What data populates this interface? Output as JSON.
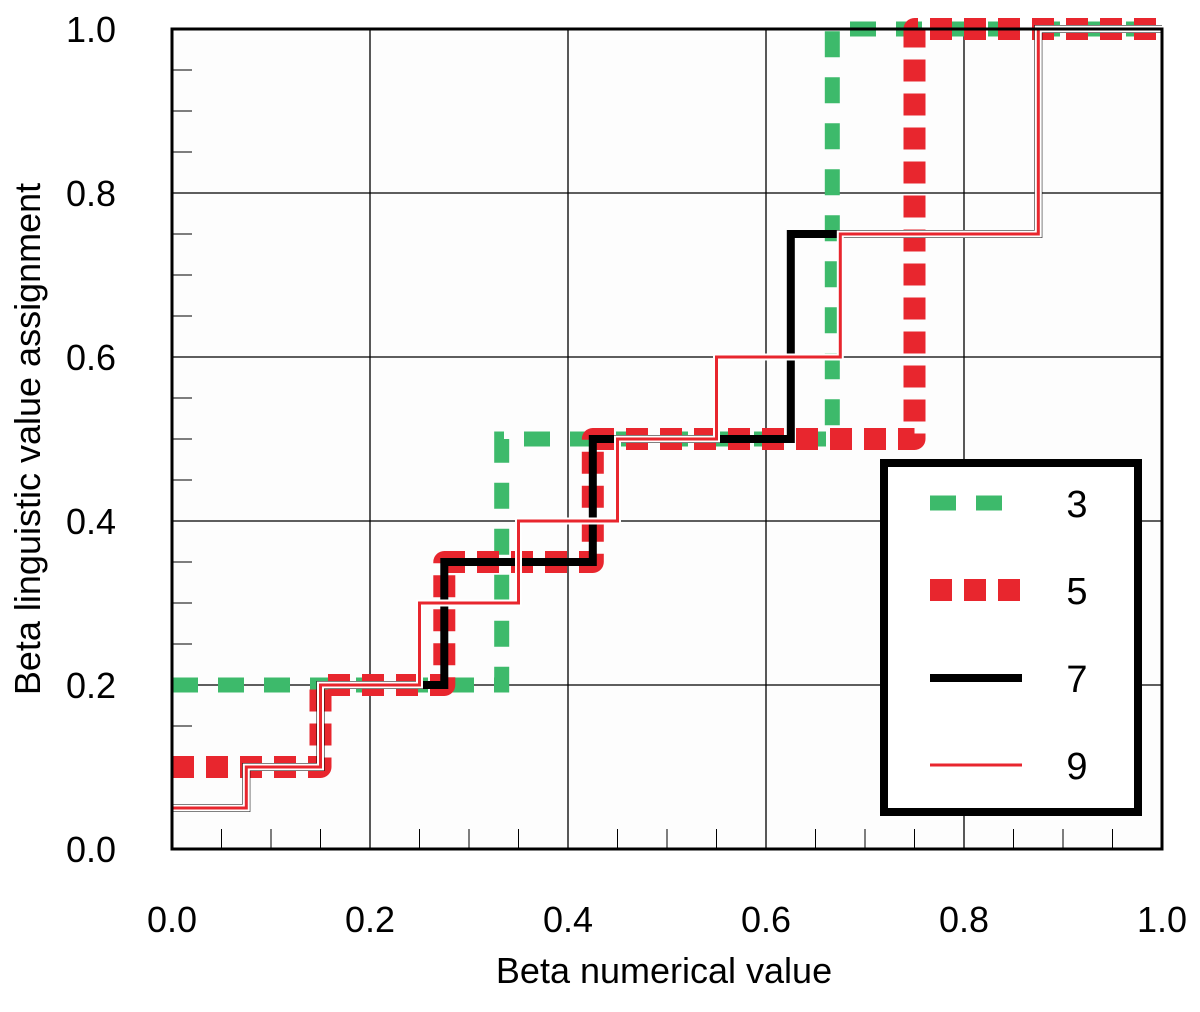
{
  "chart_data": {
    "type": "line",
    "step": true,
    "title": "",
    "xlabel": "Beta numerical value",
    "ylabel": "Beta linguistic value assignment",
    "xlim": [
      0,
      1
    ],
    "ylim": [
      0,
      1
    ],
    "xticks": [
      "0.0",
      "0.2",
      "0.4",
      "0.6",
      "0.8",
      "1.0"
    ],
    "yticks": [
      "0.0",
      "0.2",
      "0.4",
      "0.6",
      "0.8",
      "1.0"
    ],
    "grid": true,
    "legend_position": "bottom-right",
    "series": [
      {
        "name": "3",
        "color": "#3dba6b",
        "style": "dashed-thick",
        "x": [
          0.0,
          0.333,
          0.333,
          0.667,
          0.667,
          1.0
        ],
        "y": [
          0.2,
          0.2,
          0.5,
          0.5,
          1.0,
          1.0
        ]
      },
      {
        "name": "5",
        "color": "#e8262e",
        "style": "dotted-heavy",
        "x": [
          0.0,
          0.15,
          0.15,
          0.275,
          0.275,
          0.425,
          0.425,
          0.75,
          0.75,
          1.0
        ],
        "y": [
          0.1,
          0.1,
          0.2,
          0.2,
          0.35,
          0.35,
          0.5,
          0.5,
          1.0,
          1.0
        ]
      },
      {
        "name": "7",
        "color": "#000000",
        "style": "solid-thick",
        "x": [
          0.0,
          0.075,
          0.075,
          0.15,
          0.15,
          0.275,
          0.275,
          0.425,
          0.425,
          0.625,
          0.625,
          0.875,
          0.875,
          1.0
        ],
        "y": [
          0.05,
          0.05,
          0.1,
          0.1,
          0.2,
          0.2,
          0.35,
          0.35,
          0.5,
          0.5,
          0.75,
          0.75,
          1.0,
          1.0
        ]
      },
      {
        "name": "9",
        "color": "#e8262e",
        "style": "solid-thin",
        "x": [
          0.0,
          0.075,
          0.075,
          0.15,
          0.15,
          0.25,
          0.25,
          0.35,
          0.35,
          0.45,
          0.45,
          0.55,
          0.55,
          0.675,
          0.675,
          0.875,
          0.875,
          1.0
        ],
        "y": [
          0.05,
          0.05,
          0.1,
          0.1,
          0.2,
          0.2,
          0.3,
          0.3,
          0.4,
          0.4,
          0.5,
          0.5,
          0.6,
          0.6,
          0.75,
          0.75,
          1.0,
          1.0
        ]
      }
    ]
  }
}
